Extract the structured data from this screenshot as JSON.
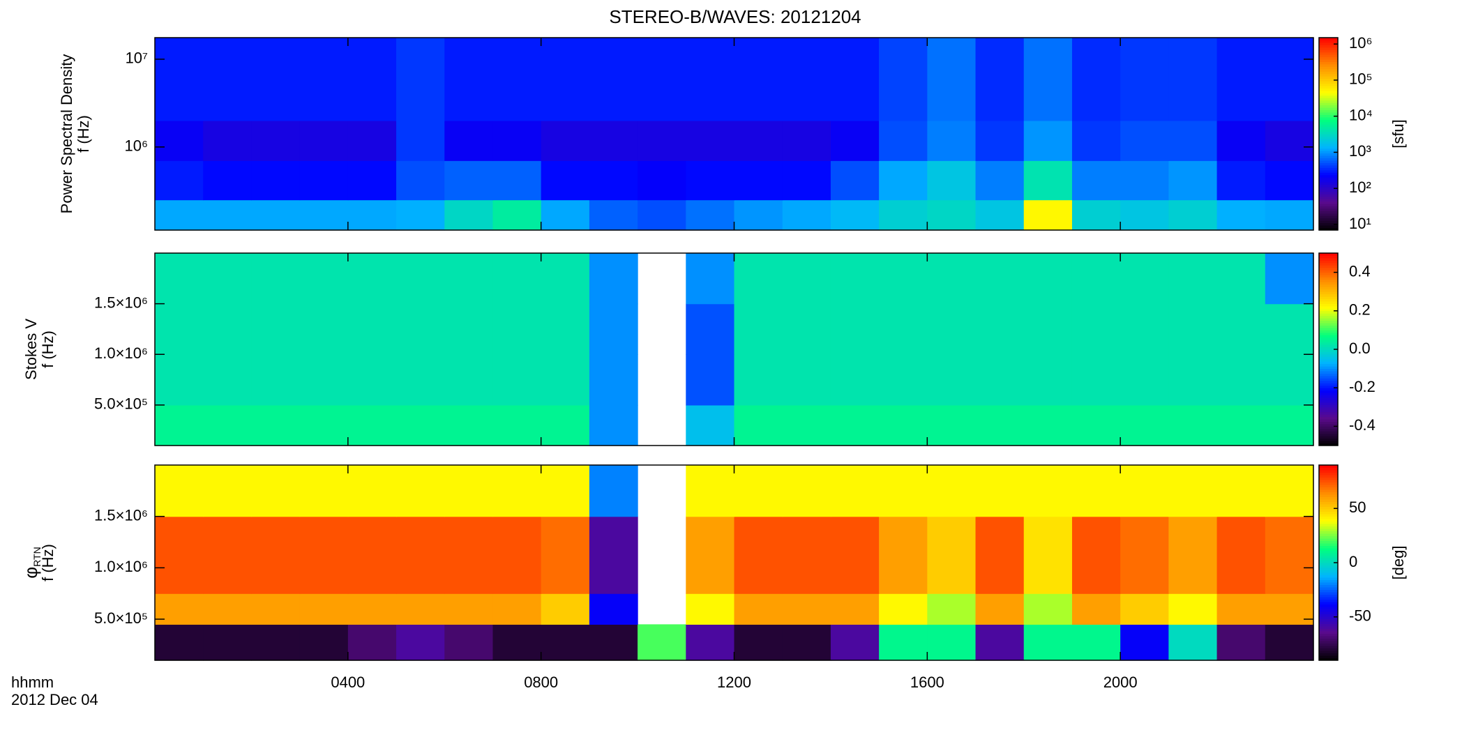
{
  "chart_data": [
    {
      "type": "heatmap",
      "title": "STEREO-B/WAVES: 20121204",
      "ylabel": [
        "Power Spectral Density",
        "f (Hz)"
      ],
      "ylog": true,
      "ylim": [
        113000,
        17600000
      ],
      "yticks": [
        {
          "value": 1000000,
          "label": "10⁶"
        },
        {
          "value": 10000000,
          "label": "10⁷"
        }
      ],
      "xlim": [
        0,
        24
      ],
      "xticks": [
        4,
        8,
        12,
        16,
        20
      ],
      "xbins": [
        0,
        1,
        2,
        3,
        4,
        5,
        6,
        7,
        8,
        9,
        10,
        11,
        12,
        13,
        14,
        15,
        16,
        17,
        18,
        19,
        20,
        21,
        22,
        23,
        24
      ],
      "ybins": [
        113000,
        250000,
        700000,
        2000000,
        17600000
      ],
      "clog": true,
      "clim": [
        7,
        1500000
      ],
      "cticks": [
        {
          "value": 10,
          "label": "10¹"
        },
        {
          "value": 100,
          "label": "10²"
        },
        {
          "value": 1000,
          "label": "10³"
        },
        {
          "value": 10000,
          "label": "10⁴"
        },
        {
          "value": 100000,
          "label": "10⁵"
        },
        {
          "value": 1000000,
          "label": "10⁶"
        }
      ],
      "clabel": "[sfu]",
      "colorscale": [
        "#000000",
        "#5a0a8c",
        "#0000ff",
        "#00b4ff",
        "#00ff7f",
        "#ffff00",
        "#ff8c00",
        "#ff0000"
      ],
      "z": [
        [
          1200,
          1200,
          1200,
          1200,
          1200,
          1300,
          3000,
          5000,
          1200,
          600,
          500,
          700,
          1000,
          1200,
          1500,
          2500,
          3000,
          2000,
          50000,
          2500,
          2000,
          2500,
          1300,
          1200
        ],
        [
          300,
          250,
          250,
          250,
          250,
          500,
          600,
          600,
          250,
          250,
          220,
          250,
          250,
          250,
          500,
          1200,
          2000,
          800,
          4000,
          800,
          800,
          1000,
          300,
          250
        ],
        [
          200,
          150,
          150,
          150,
          150,
          400,
          200,
          200,
          150,
          150,
          150,
          150,
          150,
          150,
          200,
          500,
          800,
          400,
          1000,
          400,
          500,
          500,
          200,
          150
        ],
        [
          300,
          300,
          300,
          300,
          300,
          400,
          300,
          300,
          300,
          300,
          300,
          300,
          300,
          300,
          300,
          450,
          700,
          350,
          700,
          350,
          400,
          400,
          300,
          300
        ]
      ]
    },
    {
      "type": "heatmap",
      "ylabel": [
        "Stokes V",
        "f (Hz)"
      ],
      "ylog": false,
      "ylim": [
        100000,
        2000000
      ],
      "yticks": [
        {
          "value": 500000,
          "label": "5.0×10⁵"
        },
        {
          "value": 1000000,
          "label": "1.0×10⁶"
        },
        {
          "value": 1500000,
          "label": "1.5×10⁶"
        }
      ],
      "xlim": [
        0,
        24
      ],
      "xticks": [
        4,
        8,
        12,
        16,
        20
      ],
      "xbins": [
        0,
        1,
        2,
        3,
        4,
        5,
        6,
        7,
        8,
        9,
        10,
        11,
        12,
        13,
        14,
        15,
        16,
        17,
        18,
        19,
        20,
        21,
        22,
        23,
        24
      ],
      "ybins": [
        100000,
        500000,
        1000000,
        1500000,
        2000000
      ],
      "clog": false,
      "clim": [
        -0.5,
        0.5
      ],
      "cticks": [
        -0.4,
        -0.2,
        {
          "value": 0,
          "label": "0.0"
        },
        0.2,
        0.4
      ],
      "colorscale": [
        "#000000",
        "#5a0a8c",
        "#0000ff",
        "#00b4ff",
        "#00ff7f",
        "#ffff00",
        "#ff8c00",
        "#ff0000"
      ],
      "z": [
        [
          0.05,
          0.05,
          0.05,
          0.05,
          0.05,
          0.05,
          0.05,
          0.05,
          0.05,
          -0.1,
          null,
          -0.05,
          0.05,
          0.05,
          0.05,
          0.05,
          0.05,
          0.05,
          0.05,
          0.05,
          0.05,
          0.05,
          0.05,
          0.05
        ],
        [
          0.02,
          0.02,
          0.02,
          0.02,
          0.02,
          0.02,
          0.02,
          0.02,
          0.02,
          -0.1,
          null,
          -0.15,
          0.02,
          0.02,
          0.02,
          0.02,
          0.02,
          0.02,
          0.02,
          0.02,
          0.02,
          0.02,
          0.02,
          0.02
        ],
        [
          0.02,
          0.02,
          0.02,
          0.02,
          0.02,
          0.02,
          0.02,
          0.02,
          0.02,
          -0.1,
          null,
          -0.15,
          0.02,
          0.02,
          0.02,
          0.02,
          0.02,
          0.02,
          0.02,
          0.02,
          0.02,
          0.02,
          0.02,
          0.02
        ],
        [
          0.02,
          0.02,
          0.02,
          0.02,
          0.02,
          0.02,
          0.02,
          0.02,
          0.02,
          -0.1,
          null,
          -0.1,
          0.02,
          0.02,
          0.02,
          0.02,
          0.02,
          0.02,
          0.02,
          0.02,
          0.02,
          0.02,
          0.02,
          -0.1
        ]
      ]
    },
    {
      "type": "heatmap",
      "ylabel": [
        "φ",
        "f (Hz)"
      ],
      "ylabel_sub": "RTN",
      "ylog": false,
      "ylim": [
        100000,
        2000000
      ],
      "yticks": [
        {
          "value": 500000,
          "label": "5.0×10⁵"
        },
        {
          "value": 1000000,
          "label": "1.0×10⁶"
        },
        {
          "value": 1500000,
          "label": "1.5×10⁶"
        }
      ],
      "xlim": [
        0,
        24
      ],
      "xticks": [
        {
          "value": 4,
          "label": "0400"
        },
        {
          "value": 8,
          "label": "0800"
        },
        {
          "value": 12,
          "label": "1200"
        },
        {
          "value": 16,
          "label": "1600"
        },
        {
          "value": 20,
          "label": "2000"
        }
      ],
      "xlabel": "hhmm",
      "date_label": "2012 Dec 04",
      "xbins": [
        0,
        1,
        2,
        3,
        4,
        5,
        6,
        7,
        8,
        9,
        10,
        11,
        12,
        13,
        14,
        15,
        16,
        17,
        18,
        19,
        20,
        21,
        22,
        23,
        24
      ],
      "ybins": [
        100000,
        450000,
        750000,
        1500000,
        2000000
      ],
      "clog": false,
      "clim": [
        -90,
        90
      ],
      "cticks": [
        -50,
        0,
        50
      ],
      "clabel": "[deg]",
      "colorscale": [
        "#000000",
        "#5a0a8c",
        "#0000ff",
        "#00b4ff",
        "#00ff7f",
        "#ffff00",
        "#ff8c00",
        "#ff0000"
      ],
      "z": [
        [
          -80,
          -80,
          -80,
          -80,
          -70,
          -60,
          -70,
          -80,
          -80,
          -80,
          20,
          -60,
          -80,
          -80,
          -60,
          10,
          10,
          -60,
          10,
          10,
          -40,
          0,
          -70,
          -80
        ],
        [
          60,
          60,
          60,
          60,
          60,
          60,
          60,
          60,
          50,
          -40,
          null,
          40,
          60,
          60,
          60,
          40,
          30,
          60,
          30,
          60,
          50,
          40,
          60,
          60
        ],
        [
          75,
          75,
          75,
          75,
          75,
          75,
          75,
          75,
          70,
          -60,
          null,
          60,
          75,
          75,
          75,
          60,
          50,
          75,
          45,
          75,
          70,
          60,
          75,
          70
        ],
        [
          40,
          40,
          40,
          40,
          40,
          40,
          40,
          40,
          40,
          -20,
          null,
          40,
          40,
          40,
          40,
          40,
          40,
          40,
          40,
          40,
          40,
          40,
          40,
          40
        ]
      ]
    }
  ]
}
